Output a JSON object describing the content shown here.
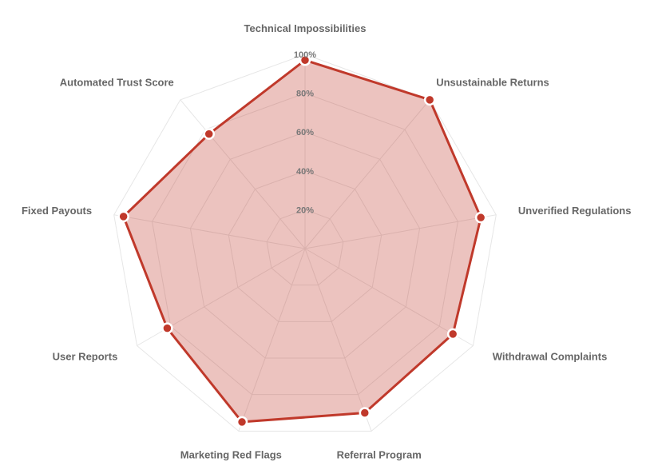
{
  "chart_data": {
    "type": "radar",
    "categories": [
      "Technical Impossibilities",
      "Unsustainable Returns",
      "Unverified Regulations",
      "Withdrawal Complaints",
      "Referral Program",
      "Marketing Red Flags",
      "User Reports",
      "Fixed Payouts",
      "Automated Trust Score"
    ],
    "series": [
      {
        "values": [
          97,
          100,
          92,
          88,
          90,
          95,
          82,
          95,
          77
        ],
        "color": "#c0392b",
        "fill": "rgba(192,57,43,0.3)"
      }
    ],
    "rlim": [
      0,
      100
    ],
    "ticks": [
      "20%",
      "40%",
      "60%",
      "80%",
      "100%"
    ],
    "grid": true,
    "legend": "none"
  }
}
